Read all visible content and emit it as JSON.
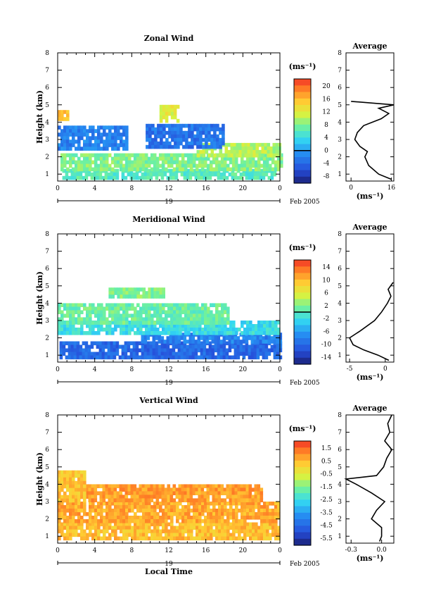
{
  "panels": [
    {
      "title": "Zonal Wind",
      "ylabel": "Height (km)",
      "y_ticks": [
        "1",
        "2",
        "3",
        "4",
        "5",
        "6",
        "7",
        "8"
      ],
      "x_ticks": [
        "0",
        "4",
        "8",
        "12",
        "16",
        "20",
        "0"
      ],
      "date_day": "19",
      "date_month": "Feb 2005",
      "unit": "(ms⁻¹)",
      "colorbar_ticks": [
        "20",
        "16",
        "12",
        "8",
        "4",
        "0",
        "-4",
        "-8"
      ],
      "avg_title": "Average",
      "avg_xticks": [
        "0",
        "16"
      ],
      "avg_unit": "(ms⁻¹)"
    },
    {
      "title": "Meridional Wind",
      "ylabel": "Height (km)",
      "y_ticks": [
        "1",
        "2",
        "3",
        "4",
        "5",
        "6",
        "7",
        "8"
      ],
      "x_ticks": [
        "0",
        "4",
        "8",
        "12",
        "16",
        "20",
        "0"
      ],
      "date_day": "19",
      "date_month": "Feb 2005",
      "unit": "(ms⁻¹)",
      "colorbar_ticks": [
        "14",
        "10",
        "6",
        "2",
        "-2",
        "-6",
        "-10",
        "-14"
      ],
      "avg_title": "Average",
      "avg_xticks": [
        "-5",
        "0"
      ],
      "avg_unit": "(ms⁻¹)"
    },
    {
      "title": "Vertical Wind",
      "ylabel": "Height (km)",
      "y_ticks": [
        "1",
        "2",
        "3",
        "4",
        "5",
        "6",
        "7",
        "8"
      ],
      "x_ticks": [
        "0",
        "4",
        "8",
        "12",
        "16",
        "20",
        "0"
      ],
      "date_day": "19",
      "date_month": "Feb 2005",
      "unit": "(ms⁻¹)",
      "colorbar_ticks": [
        "1.5",
        "0.5",
        "-0.5",
        "-1.5",
        "-2.5",
        "-3.5",
        "-4.5",
        "-5.5"
      ],
      "avg_title": "Average",
      "avg_xticks": [
        "-0.3",
        "0.0"
      ],
      "avg_unit": "(ms⁻¹)",
      "xlabel": "Local Time"
    }
  ],
  "chart_data": [
    {
      "type": "heatmap",
      "title": "Zonal Wind",
      "xlabel": "",
      "ylabel": "Height (km)",
      "xlim": [
        0,
        24
      ],
      "ylim": [
        0.6,
        8
      ],
      "colorbar": {
        "unit": "(ms⁻¹)",
        "range": [
          -10,
          22
        ],
        "zero_line": true
      },
      "regions": [
        {
          "x": [
            0.5,
            23.5
          ],
          "y": [
            0.8,
            1.3
          ],
          "value": 6
        },
        {
          "x": [
            0.3,
            24
          ],
          "y": [
            1.3,
            2.2
          ],
          "value": 8
        },
        {
          "x": [
            15,
            24
          ],
          "y": [
            2.0,
            2.8
          ],
          "value": 10
        },
        {
          "x": [
            0,
            7.5
          ],
          "y": [
            2.4,
            3.8
          ],
          "value": -2
        },
        {
          "x": [
            9.5,
            18
          ],
          "y": [
            2.5,
            3.9
          ],
          "value": -3
        },
        {
          "x": [
            0,
            1.2
          ],
          "y": [
            4.1,
            4.7
          ],
          "value": 15
        },
        {
          "x": [
            11,
            13
          ],
          "y": [
            4.1,
            5.0
          ],
          "value": 12
        }
      ],
      "average_profile": {
        "x_unit": "(ms⁻¹)",
        "xlim": [
          -2,
          17
        ],
        "height": [
          0.7,
          1.0,
          1.5,
          2.0,
          2.3,
          2.6,
          3.0,
          3.4,
          3.8,
          4.2,
          4.5,
          4.8,
          5.0,
          5.2
        ],
        "value": [
          16,
          11,
          7,
          5.5,
          6.5,
          3.5,
          1.5,
          2.5,
          5,
          12,
          15,
          11,
          17,
          0
        ]
      }
    },
    {
      "type": "heatmap",
      "title": "Meridional Wind",
      "xlabel": "",
      "ylabel": "Height (km)",
      "xlim": [
        0,
        24
      ],
      "ylim": [
        0.6,
        8
      ],
      "colorbar": {
        "unit": "(ms⁻¹)",
        "range": [
          -16,
          16
        ],
        "zero_line": true
      },
      "regions": [
        {
          "x": [
            0.2,
            24
          ],
          "y": [
            0.8,
            1.8
          ],
          "value": -10
        },
        {
          "x": [
            9,
            24
          ],
          "y": [
            1.8,
            2.3
          ],
          "value": -8
        },
        {
          "x": [
            0,
            24
          ],
          "y": [
            2.3,
            3.0
          ],
          "value": -2
        },
        {
          "x": [
            0,
            18.5
          ],
          "y": [
            2.8,
            4.0
          ],
          "value": 1
        },
        {
          "x": [
            5.5,
            11.5
          ],
          "y": [
            4.3,
            4.9
          ],
          "value": 2
        }
      ],
      "average_profile": {
        "x_unit": "(ms⁻¹)",
        "xlim": [
          -5.5,
          1.2
        ],
        "height": [
          0.7,
          1.0,
          1.3,
          1.6,
          2.0,
          2.4,
          3.0,
          3.5,
          4.0,
          4.4,
          4.8,
          5.2
        ],
        "value": [
          0.5,
          -1,
          -3,
          -4.5,
          -5,
          -3.5,
          -1.5,
          -0.5,
          0.3,
          0.8,
          0.4,
          1.1
        ]
      }
    },
    {
      "type": "heatmap",
      "title": "Vertical Wind",
      "xlabel": "Local Time",
      "ylabel": "Height (km)",
      "xlim": [
        0,
        24
      ],
      "ylim": [
        0.6,
        8
      ],
      "colorbar": {
        "unit": "(ms⁻¹)",
        "range": [
          -6,
          2
        ],
        "zero_line": false
      },
      "regions": [
        {
          "x": [
            0,
            24
          ],
          "y": [
            0.8,
            1.8
          ],
          "value": 0.4
        },
        {
          "x": [
            0,
            24
          ],
          "y": [
            1.8,
            3.0
          ],
          "value": 0.7
        },
        {
          "x": [
            3,
            22
          ],
          "y": [
            3.0,
            4.0
          ],
          "value": 0.8
        },
        {
          "x": [
            0,
            3
          ],
          "y": [
            3.0,
            4.8
          ],
          "value": 0.3
        }
      ],
      "average_profile": {
        "x_unit": "(ms⁻¹)",
        "xlim": [
          -0.35,
          0.12
        ],
        "height": [
          0.7,
          1.0,
          1.5,
          2.0,
          2.5,
          3.0,
          3.5,
          4.0,
          4.3,
          4.5,
          5.0,
          5.5,
          6.0,
          6.5,
          7.0,
          7.5,
          8.0
        ],
        "value": [
          -0.02,
          0.0,
          0.0,
          -0.1,
          -0.05,
          0.03,
          -0.1,
          -0.25,
          -0.35,
          -0.05,
          0.02,
          0.05,
          0.1,
          0.03,
          0.08,
          0.06,
          0.1
        ]
      }
    }
  ]
}
